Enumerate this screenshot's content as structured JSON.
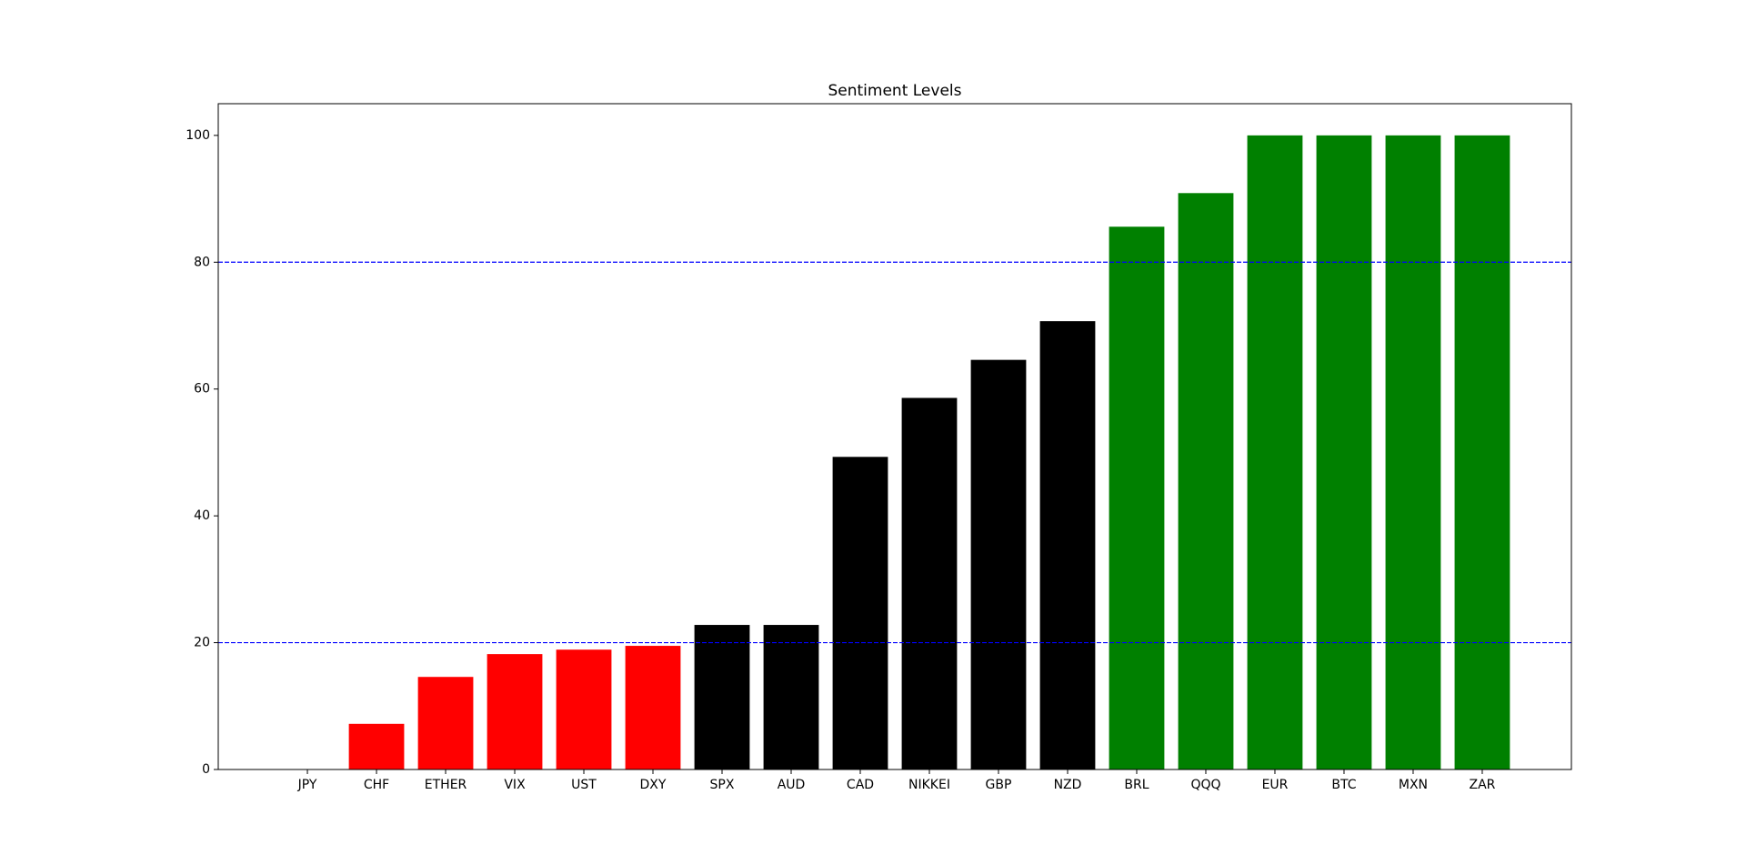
{
  "chart_data": {
    "type": "bar",
    "title": "Sentiment Levels",
    "categories": [
      "JPY",
      "CHF",
      "ETHER",
      "VIX",
      "UST",
      "DXY",
      "SPX",
      "AUD",
      "CAD",
      "NIKKEI",
      "GBP",
      "NZD",
      "BRL",
      "QQQ",
      "EUR",
      "BTC",
      "MXN",
      "ZAR"
    ],
    "values": [
      0,
      7.2,
      14.6,
      18.2,
      18.9,
      19.5,
      22.8,
      22.8,
      49.3,
      58.6,
      64.6,
      70.7,
      85.6,
      90.9,
      100,
      100,
      100,
      100
    ],
    "colors": [
      "red",
      "red",
      "red",
      "red",
      "red",
      "red",
      "black",
      "black",
      "black",
      "black",
      "black",
      "black",
      "green",
      "green",
      "green",
      "green",
      "green",
      "green"
    ],
    "ylim": [
      0,
      105
    ],
    "yticks": [
      0,
      20,
      40,
      60,
      80,
      100
    ],
    "hlines": [
      20,
      80
    ],
    "hline_color": "blue"
  }
}
